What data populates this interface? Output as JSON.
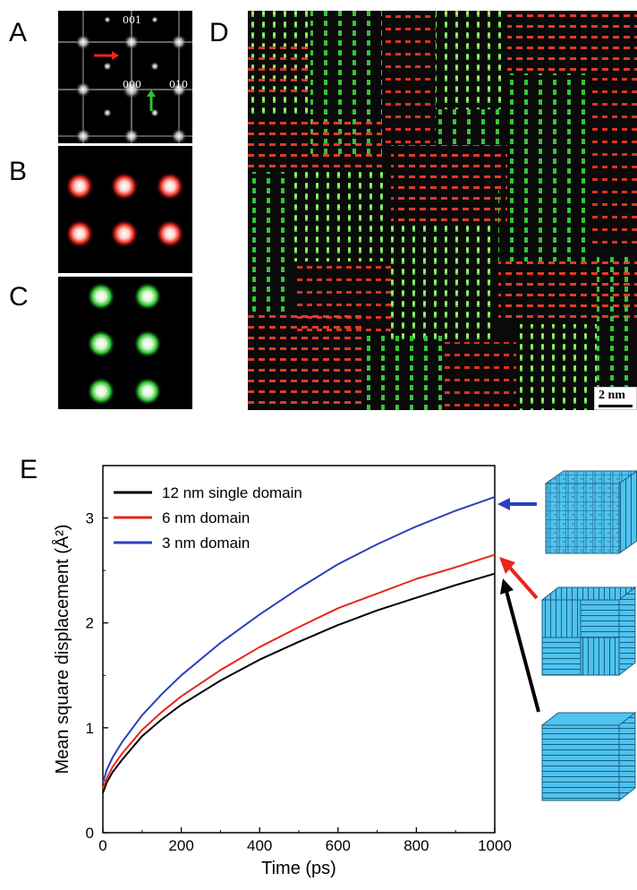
{
  "panels": {
    "A": {
      "letter": "A",
      "labels": {
        "l001": "001",
        "l000": "000",
        "l010": "010"
      }
    },
    "B": {
      "letter": "B"
    },
    "C": {
      "letter": "C"
    },
    "D": {
      "letter": "D",
      "scalebar": "2 nm"
    },
    "E": {
      "letter": "E"
    }
  },
  "colors": {
    "red": "#e8261a",
    "green": "#2fc22f",
    "blue": "#2b3fbf",
    "black": "#000000",
    "cube": "#4fc3f0"
  },
  "chart_data": {
    "type": "line",
    "xlabel": "Time (ps)",
    "ylabel": "Mean square displacement (Å²)",
    "xlim": [
      0,
      1000
    ],
    "ylim": [
      0,
      3.5
    ],
    "xticks": [
      0,
      200,
      400,
      600,
      800,
      1000
    ],
    "yticks": [
      0,
      1,
      2,
      3
    ],
    "legend_position": "top-left",
    "series": [
      {
        "name": "12 nm single domain",
        "color": "#000000",
        "x": [
          0,
          10,
          25,
          50,
          100,
          150,
          200,
          300,
          400,
          500,
          600,
          700,
          800,
          900,
          1000
        ],
        "y": [
          0.38,
          0.48,
          0.58,
          0.7,
          0.92,
          1.08,
          1.22,
          1.45,
          1.65,
          1.82,
          1.98,
          2.12,
          2.24,
          2.36,
          2.47
        ]
      },
      {
        "name": "6 nm domain",
        "color": "#e8261a",
        "x": [
          0,
          10,
          25,
          50,
          100,
          150,
          200,
          300,
          400,
          500,
          600,
          700,
          800,
          900,
          1000
        ],
        "y": [
          0.42,
          0.52,
          0.63,
          0.76,
          0.98,
          1.15,
          1.3,
          1.55,
          1.77,
          1.96,
          2.14,
          2.28,
          2.42,
          2.53,
          2.65
        ]
      },
      {
        "name": "3 nm domain",
        "color": "#2b3fbf",
        "x": [
          0,
          10,
          25,
          50,
          100,
          150,
          200,
          300,
          400,
          500,
          600,
          700,
          800,
          900,
          1000
        ],
        "y": [
          0.48,
          0.6,
          0.72,
          0.87,
          1.12,
          1.32,
          1.5,
          1.81,
          2.08,
          2.33,
          2.56,
          2.75,
          2.92,
          3.07,
          3.2
        ]
      }
    ]
  }
}
